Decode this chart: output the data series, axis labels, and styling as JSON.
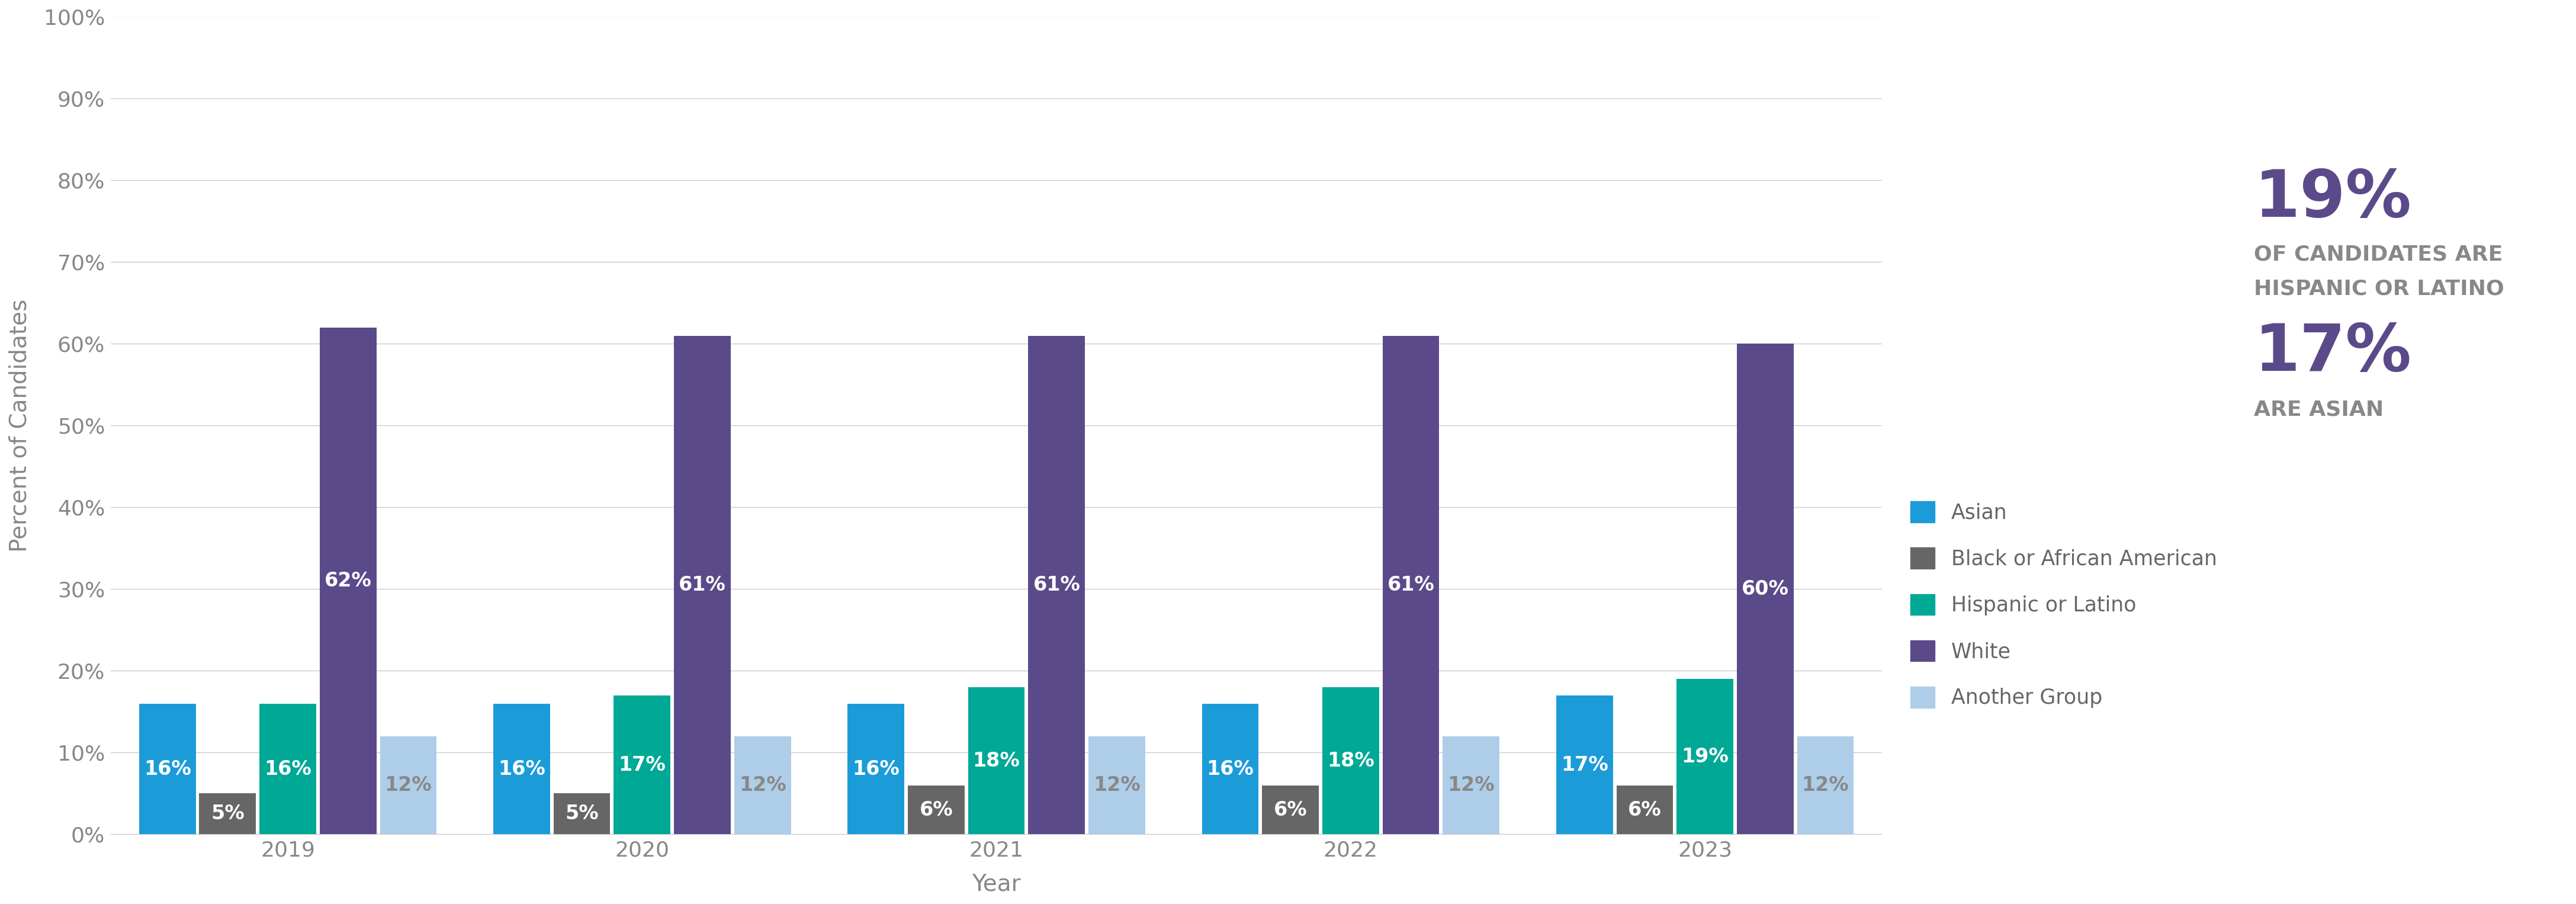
{
  "years": [
    "2019",
    "2020",
    "2021",
    "2022",
    "2023"
  ],
  "categories": [
    "Asian",
    "Black or African American",
    "Hispanic or Latino",
    "White",
    "Another Group"
  ],
  "colors": [
    "#1B9CD9",
    "#666666",
    "#00A896",
    "#5B4A8A",
    "#AECDE8"
  ],
  "label_text_colors": [
    "white",
    "white",
    "white",
    "white",
    "#888888"
  ],
  "values": {
    "2019": [
      16,
      5,
      16,
      62,
      12
    ],
    "2020": [
      16,
      5,
      17,
      61,
      12
    ],
    "2021": [
      16,
      6,
      18,
      61,
      12
    ],
    "2022": [
      16,
      6,
      18,
      61,
      12
    ],
    "2023": [
      17,
      6,
      19,
      60,
      12
    ]
  },
  "ylabel": "Percent of Candidates",
  "xlabel": "Year",
  "ylim": [
    0,
    100
  ],
  "yticks": [
    0,
    10,
    20,
    30,
    40,
    50,
    60,
    70,
    80,
    90,
    100
  ],
  "ytick_labels": [
    "0%",
    "10%",
    "20%",
    "30%",
    "40%",
    "50%",
    "60%",
    "70%",
    "80%",
    "90%",
    "100%"
  ],
  "bar_width": 0.16,
  "annotation_19_pct": "19%",
  "annotation_19_line1": "OF CANDIDATES ARE",
  "annotation_19_line2": "HISPANIC OR LATINO",
  "annotation_17_pct": "17%",
  "annotation_17_text": "ARE ASIAN",
  "annotation_color": "#5B4A8A",
  "annotation_subtext_color": "#888888",
  "background_color": "#FFFFFF",
  "grid_color": "#CCCCCC",
  "tick_fontsize": 26,
  "bar_label_fontsize": 24,
  "legend_fontsize": 25,
  "annotation_big_fontsize": 80,
  "annotation_small_fontsize": 26,
  "axis_label_fontsize": 28
}
